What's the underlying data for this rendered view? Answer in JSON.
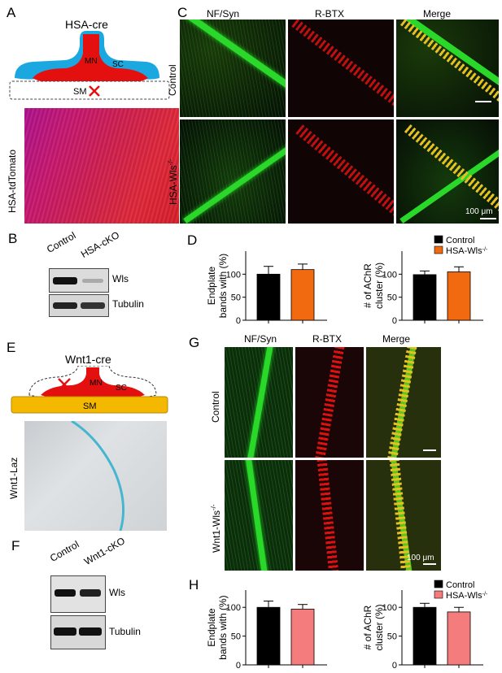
{
  "panels": {
    "A": {
      "letter": "A",
      "title": "HSA-cre",
      "mn": "MN",
      "sc": "SC",
      "sm": "SM",
      "image_label": "HSA-tdTomato"
    },
    "B": {
      "letter": "B",
      "col1": "Control",
      "col2": "HSA-cKO",
      "row1": "Wls",
      "row2": "Tubulin"
    },
    "C": {
      "letter": "C",
      "col1": "NF/Syn",
      "col2": "R-BTX",
      "col3": "Merge",
      "row1": "Control",
      "row2": "HSA-Wls",
      "row2_sup": "-/-",
      "scale": "100 μm"
    },
    "D": {
      "letter": "D"
    },
    "E": {
      "letter": "E",
      "title": "Wnt1-cre",
      "mn": "MN",
      "sc": "SC",
      "sm": "SM",
      "image_label": "Wnt1-Laz"
    },
    "F": {
      "letter": "F",
      "col1": "Control",
      "col2": "Wnt1-cKO",
      "row1": "Wls",
      "row2": "Tubulin"
    },
    "G": {
      "letter": "G",
      "col1": "NF/Syn",
      "col2": "R-BTX",
      "col3": "Merge",
      "row1": "Control",
      "row2": "Wnt1-Wls",
      "row2_sup": "-/-",
      "scale": "100 μm"
    },
    "H": {
      "letter": "H"
    }
  },
  "colors": {
    "control": "#000000",
    "hsa_d": "#f26a10",
    "hsa_h": "#f47c7c",
    "nerve_green": "#1fd11f",
    "red": "#e01010",
    "sc_blue": "#1ba8e0",
    "sm_yellow": "#f5b800"
  },
  "chart_data": [
    {
      "type": "bar",
      "panel": "D-left",
      "categories": [
        "Control",
        "HSA-Wls-/-"
      ],
      "values": [
        100,
        110
      ],
      "errors": [
        17,
        12
      ],
      "ylabel": "Endplate bands with (%)",
      "ylim": [
        0,
        150
      ],
      "yticks": [
        0,
        50,
        100
      ]
    },
    {
      "type": "bar",
      "panel": "D-right",
      "categories": [
        "Control",
        "HSA-Wls-/-"
      ],
      "values": [
        99,
        105
      ],
      "errors": [
        8,
        11
      ],
      "ylabel": "# of AChR cluster (%)",
      "ylim": [
        0,
        150
      ],
      "yticks": [
        0,
        50,
        100
      ]
    },
    {
      "type": "bar",
      "panel": "H-left",
      "categories": [
        "Control",
        "HSA-Wls-/-"
      ],
      "values": [
        100,
        97
      ],
      "errors": [
        11,
        8
      ],
      "ylabel": "Endplate bands with (%)",
      "ylim": [
        0,
        130
      ],
      "yticks": [
        0,
        50,
        100
      ]
    },
    {
      "type": "bar",
      "panel": "H-right",
      "categories": [
        "Control",
        "HSA-Wls-/-"
      ],
      "values": [
        100,
        92
      ],
      "errors": [
        7,
        8
      ],
      "ylabel": "# of AChR cluster (%)",
      "ylim": [
        0,
        130
      ],
      "yticks": [
        0,
        50,
        100
      ]
    }
  ],
  "legends": {
    "D": [
      {
        "label": "Control",
        "sup": ""
      },
      {
        "label": "HSA-Wls",
        "sup": "-/-"
      }
    ],
    "H": [
      {
        "label": "Control",
        "sup": ""
      },
      {
        "label": "HSA-Wls",
        "sup": "-/-"
      }
    ]
  }
}
